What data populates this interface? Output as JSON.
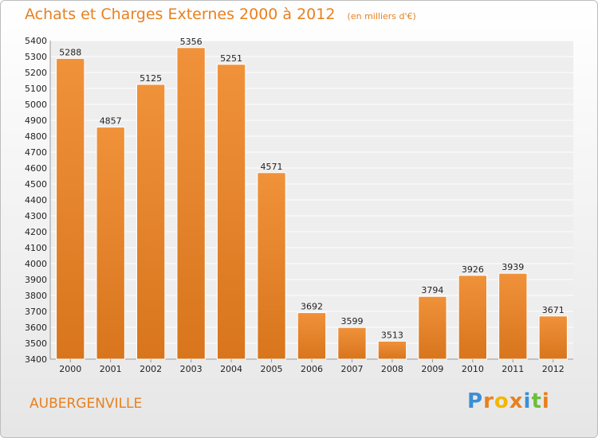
{
  "header": {
    "title": "Achats et Charges Externes 2000 à 2012",
    "unit": "(en milliers d'€)"
  },
  "footer": {
    "city": "AUBERGENVILLE",
    "logo_text": "Proxiti",
    "logo_colors": [
      "#3a8fd6",
      "#e8801f",
      "#f2b705",
      "#e8801f",
      "#3a8fd6",
      "#6cbf3a",
      "#e8801f"
    ]
  },
  "chart_data": {
    "type": "bar",
    "title": "Achats et Charges Externes 2000 à 2012",
    "subtitle": "(en milliers d'€)",
    "xlabel": "",
    "ylabel": "",
    "categories": [
      "2000",
      "2001",
      "2002",
      "2003",
      "2004",
      "2005",
      "2006",
      "2007",
      "2008",
      "2009",
      "2010",
      "2011",
      "2012"
    ],
    "values": [
      5288,
      4857,
      5125,
      5356,
      5251,
      4571,
      3692,
      3599,
      3513,
      3794,
      3926,
      3939,
      3671
    ],
    "ylim": [
      3400,
      5400
    ],
    "ytick_step": 100,
    "grid": true,
    "legend": "none",
    "bar_color": "#f0923a",
    "bar_color_dark": "#d8751d"
  }
}
